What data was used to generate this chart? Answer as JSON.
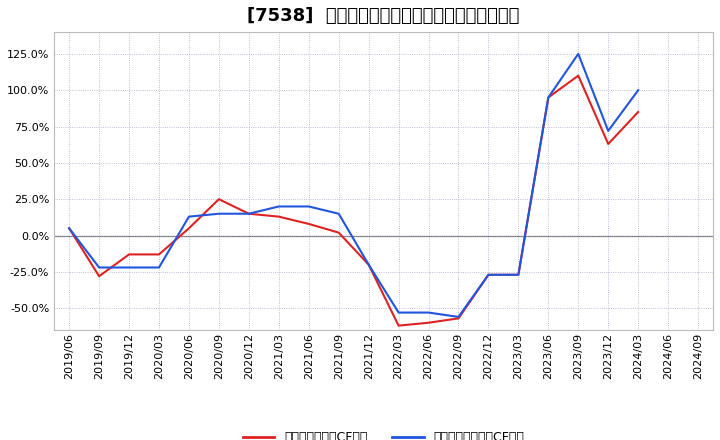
{
  "title": "[7538]  有利子負債キャッシュフロー比率の推移",
  "legend_red": "有利子負債営業CF比率",
  "legend_blue": "有利子負債フリーCF比率",
  "x_labels": [
    "2019/06",
    "2019/09",
    "2019/12",
    "2020/03",
    "2020/06",
    "2020/09",
    "2020/12",
    "2021/03",
    "2021/06",
    "2021/09",
    "2021/12",
    "2022/03",
    "2022/06",
    "2022/09",
    "2022/12",
    "2023/03",
    "2023/06",
    "2023/09",
    "2023/12",
    "2024/03",
    "2024/06",
    "2024/09"
  ],
  "red_values": [
    0.05,
    -0.28,
    -0.13,
    -0.13,
    0.05,
    0.25,
    0.15,
    0.13,
    0.08,
    0.02,
    -0.2,
    -0.62,
    -0.6,
    -0.57,
    -0.27,
    -0.27,
    0.95,
    1.1,
    0.63,
    0.85,
    null,
    null
  ],
  "blue_values": [
    0.05,
    -0.22,
    -0.22,
    -0.22,
    0.13,
    0.15,
    0.15,
    0.2,
    0.2,
    0.15,
    -0.2,
    -0.53,
    -0.53,
    -0.56,
    -0.27,
    -0.27,
    0.95,
    1.25,
    0.72,
    1.0,
    null,
    null
  ],
  "ylim": [
    -0.65,
    1.4
  ],
  "yticks": [
    -0.5,
    -0.25,
    0.0,
    0.25,
    0.5,
    0.75,
    1.0,
    1.25
  ],
  "background_color": "#ffffff",
  "plot_bg_color": "#ffffff",
  "grid_color": "#aaaacc",
  "red_color": "#dd2222",
  "blue_color": "#2255dd",
  "zero_line_color": "#777777",
  "title_fontsize": 13,
  "legend_fontsize": 9,
  "tick_fontsize": 8
}
